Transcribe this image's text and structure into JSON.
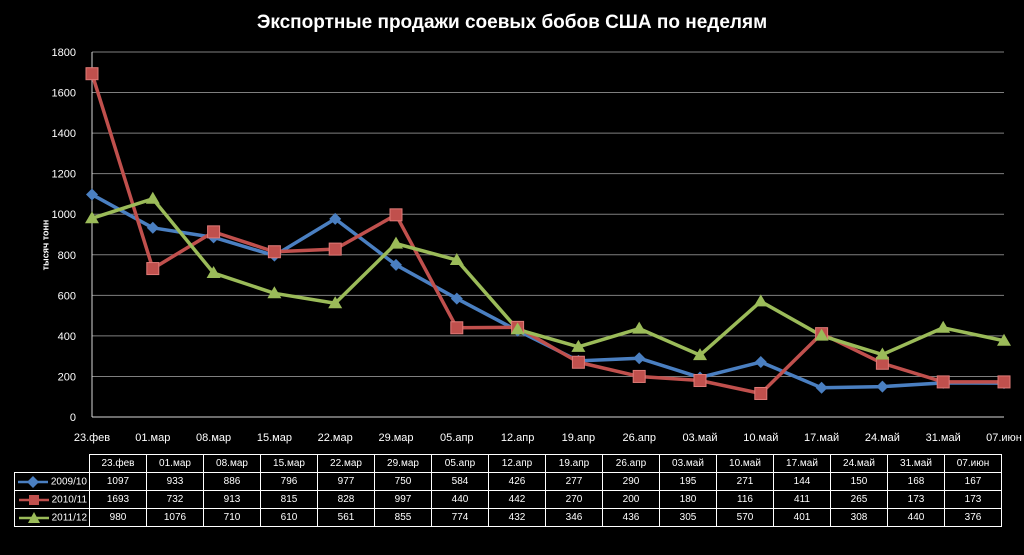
{
  "title": "Экспортные продажи соевых бобов США по неделям",
  "chart_data": {
    "type": "line",
    "title": "Экспортные продажи соевых бобов США по неделям",
    "ylabel": "тысяч тонн",
    "xlabel": "",
    "ylim": [
      0,
      1800
    ],
    "yticks": [
      0,
      200,
      400,
      600,
      800,
      1000,
      1200,
      1400,
      1600,
      1800
    ],
    "grid": true,
    "legend": "data-table-bottom",
    "categories": [
      "23.фев",
      "01.мар",
      "08.мар",
      "15.мар",
      "22.мар",
      "29.мар",
      "05.апр",
      "12.апр",
      "19.апр",
      "26.апр",
      "03.май",
      "10.май",
      "17.май",
      "24.май",
      "31.май",
      "07.июн"
    ],
    "series": [
      {
        "name": "2009/10",
        "color": "#4a7fc1",
        "marker": "diamond",
        "values": [
          1097,
          933,
          886,
          796,
          977,
          750,
          584,
          426,
          277,
          290,
          195,
          271,
          144,
          150,
          168,
          167
        ]
      },
      {
        "name": "2010/11",
        "color": "#c0504d",
        "marker": "square",
        "values": [
          1693,
          732,
          913,
          815,
          828,
          997,
          440,
          442,
          270,
          200,
          180,
          116,
          411,
          265,
          173,
          173
        ]
      },
      {
        "name": "2011/12",
        "color": "#9bbb59",
        "marker": "triangle",
        "values": [
          980,
          1076,
          710,
          610,
          561,
          855,
          774,
          432,
          346,
          436,
          305,
          570,
          401,
          308,
          440,
          376
        ]
      }
    ]
  }
}
